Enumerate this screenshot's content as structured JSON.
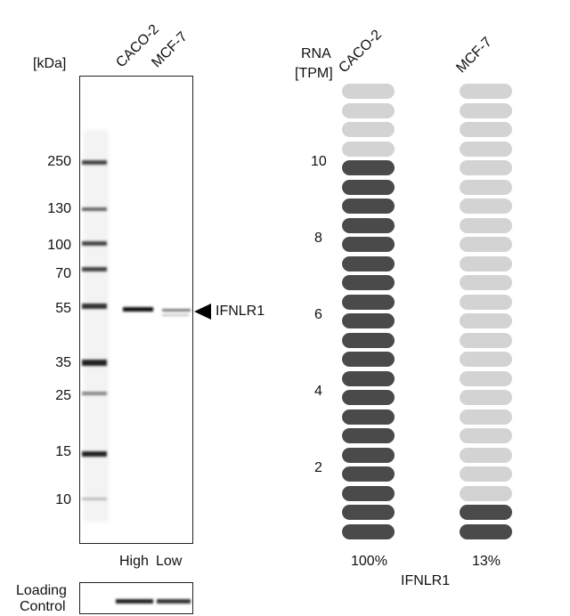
{
  "western_blot": {
    "unit_label": "[kDa]",
    "lanes": [
      "CACO-2",
      "MCF-7"
    ],
    "markers": [
      "250",
      "130",
      "100",
      "70",
      "55",
      "35",
      "25",
      "15",
      "10"
    ],
    "target_label": "IFNLR1",
    "lane_levels": [
      "High",
      "Low"
    ],
    "loading_control_line1": "Loading",
    "loading_control_line2": "Control"
  },
  "rna_panel": {
    "label_line1": "RNA",
    "label_line2": "[TPM]",
    "samples": [
      "CACO-2",
      "MCF-7"
    ],
    "y_ticks": [
      "10",
      "8",
      "6",
      "4",
      "2"
    ],
    "percent_values": [
      "100%",
      "13%"
    ],
    "gene_label": "IFNLR1",
    "total_pills": 24,
    "filled_pills": [
      20,
      2
    ],
    "colors": {
      "filled": "#4a4a4a",
      "empty": "#d3d3d3"
    }
  }
}
